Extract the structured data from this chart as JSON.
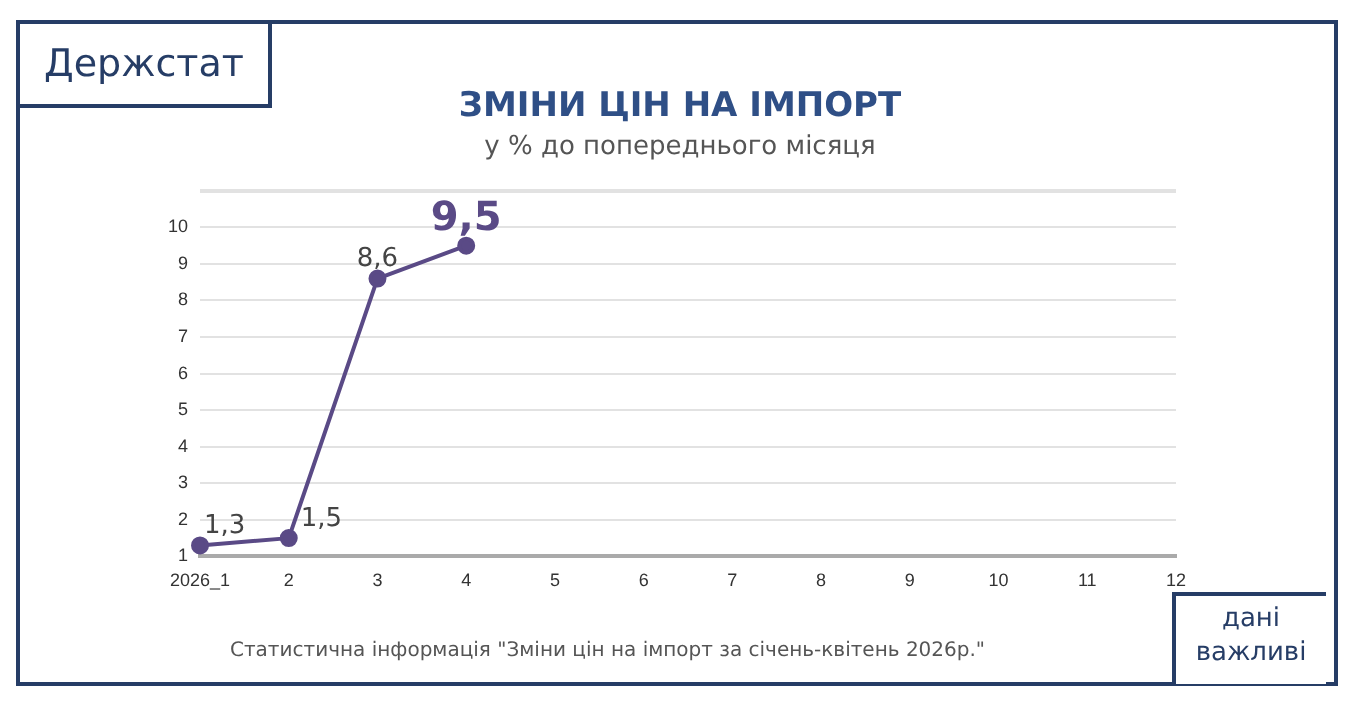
{
  "chart_data": {
    "type": "line",
    "title": "ЗМІНИ ЦІН НА ІМПОРТ",
    "subtitle": "у % до попереднього місяця",
    "categories": [
      "2026_1",
      "2",
      "3",
      "4",
      "5",
      "6",
      "7",
      "8",
      "9",
      "10",
      "11",
      "12"
    ],
    "values": [
      1.3,
      1.5,
      8.6,
      9.5,
      null,
      null,
      null,
      null,
      null,
      null,
      null,
      null
    ],
    "value_labels": [
      "1,3",
      "1,5",
      "8,6",
      "9,5",
      null,
      null,
      null,
      null,
      null,
      null,
      null,
      null
    ],
    "color": "#5a4a86",
    "marker": "circle",
    "grid": "y",
    "ylim": [
      1,
      11
    ],
    "yticks": [
      1,
      2,
      3,
      4,
      5,
      6,
      7,
      8,
      9,
      10,
      {
        "value": 11,
        "label": null
      }
    ],
    "annotations": [
      "Держстат",
      "Статистична інформація \"Зміни цін на імпорт за січень-квітень 2026р.\"",
      "дані важливі"
    ]
  }
}
